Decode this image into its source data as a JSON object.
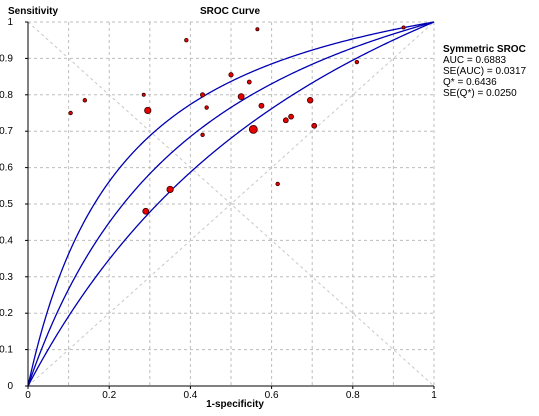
{
  "chart_data": {
    "type": "scatter",
    "title": "SROC Curve",
    "xlabel": "1-specificity",
    "ylabel": "Sensitivity",
    "xlim": [
      0,
      1
    ],
    "ylim": [
      0,
      1
    ],
    "grid": true,
    "x_ticks": [
      "0",
      "0.2",
      "0.4",
      "0.6",
      "0.8",
      "1"
    ],
    "y_ticks": [
      "0",
      "0.1",
      "0.2",
      "0.3",
      "0.4",
      "0.5",
      "0.6",
      "0.7",
      "0.8",
      "0.9",
      "1"
    ],
    "annotation": {
      "heading": "Symmetric SROC",
      "lines": [
        "AUC = 0.6883",
        "SE(AUC) = 0.0317",
        "Q* = 0.6436",
        "SE(Q*) = 0.0250"
      ]
    },
    "curves": {
      "q_star": 0.6436,
      "se_q_star": 0.025,
      "interval_multiplier": 2
    },
    "points": [
      {
        "x": 0.105,
        "y": 0.75,
        "size": 1.8
      },
      {
        "x": 0.14,
        "y": 0.785,
        "size": 1.8
      },
      {
        "x": 0.285,
        "y": 0.8,
        "size": 1.6
      },
      {
        "x": 0.295,
        "y": 0.757,
        "size": 3.2
      },
      {
        "x": 0.29,
        "y": 0.48,
        "size": 3.0
      },
      {
        "x": 0.35,
        "y": 0.54,
        "size": 3.2
      },
      {
        "x": 0.39,
        "y": 0.95,
        "size": 1.8
      },
      {
        "x": 0.43,
        "y": 0.8,
        "size": 2.2
      },
      {
        "x": 0.44,
        "y": 0.765,
        "size": 1.8
      },
      {
        "x": 0.43,
        "y": 0.69,
        "size": 1.8
      },
      {
        "x": 0.5,
        "y": 0.855,
        "size": 2.2
      },
      {
        "x": 0.525,
        "y": 0.795,
        "size": 3.0
      },
      {
        "x": 0.545,
        "y": 0.835,
        "size": 2.0
      },
      {
        "x": 0.555,
        "y": 0.705,
        "size": 4.0
      },
      {
        "x": 0.565,
        "y": 0.98,
        "size": 1.6
      },
      {
        "x": 0.575,
        "y": 0.77,
        "size": 2.5
      },
      {
        "x": 0.615,
        "y": 0.555,
        "size": 1.8
      },
      {
        "x": 0.635,
        "y": 0.73,
        "size": 2.5
      },
      {
        "x": 0.648,
        "y": 0.74,
        "size": 2.5
      },
      {
        "x": 0.695,
        "y": 0.785,
        "size": 2.8
      },
      {
        "x": 0.705,
        "y": 0.715,
        "size": 2.5
      },
      {
        "x": 0.81,
        "y": 0.89,
        "size": 1.8
      },
      {
        "x": 0.925,
        "y": 0.985,
        "size": 1.6
      }
    ]
  }
}
